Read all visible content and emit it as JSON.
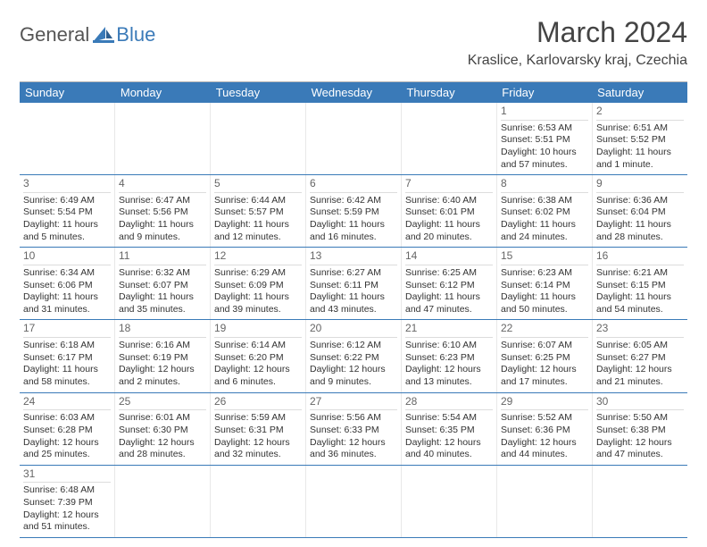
{
  "logo": {
    "text1": "General",
    "text2": "Blue"
  },
  "title": "March 2024",
  "location": "Kraslice, Karlovarsky kraj, Czechia",
  "colors": {
    "header_bg": "#3a7ab8",
    "header_fg": "#ffffff",
    "row_divider": "#3a7ab8",
    "cell_divider": "#e8e8e8",
    "text": "#333333",
    "muted": "#666666",
    "background": "#ffffff"
  },
  "day_headers": [
    "Sunday",
    "Monday",
    "Tuesday",
    "Wednesday",
    "Thursday",
    "Friday",
    "Saturday"
  ],
  "weeks": [
    [
      {
        "n": "",
        "sr": "",
        "ss": "",
        "dl": ""
      },
      {
        "n": "",
        "sr": "",
        "ss": "",
        "dl": ""
      },
      {
        "n": "",
        "sr": "",
        "ss": "",
        "dl": ""
      },
      {
        "n": "",
        "sr": "",
        "ss": "",
        "dl": ""
      },
      {
        "n": "",
        "sr": "",
        "ss": "",
        "dl": ""
      },
      {
        "n": "1",
        "sr": "Sunrise: 6:53 AM",
        "ss": "Sunset: 5:51 PM",
        "dl": "Daylight: 10 hours and 57 minutes."
      },
      {
        "n": "2",
        "sr": "Sunrise: 6:51 AM",
        "ss": "Sunset: 5:52 PM",
        "dl": "Daylight: 11 hours and 1 minute."
      }
    ],
    [
      {
        "n": "3",
        "sr": "Sunrise: 6:49 AM",
        "ss": "Sunset: 5:54 PM",
        "dl": "Daylight: 11 hours and 5 minutes."
      },
      {
        "n": "4",
        "sr": "Sunrise: 6:47 AM",
        "ss": "Sunset: 5:56 PM",
        "dl": "Daylight: 11 hours and 9 minutes."
      },
      {
        "n": "5",
        "sr": "Sunrise: 6:44 AM",
        "ss": "Sunset: 5:57 PM",
        "dl": "Daylight: 11 hours and 12 minutes."
      },
      {
        "n": "6",
        "sr": "Sunrise: 6:42 AM",
        "ss": "Sunset: 5:59 PM",
        "dl": "Daylight: 11 hours and 16 minutes."
      },
      {
        "n": "7",
        "sr": "Sunrise: 6:40 AM",
        "ss": "Sunset: 6:01 PM",
        "dl": "Daylight: 11 hours and 20 minutes."
      },
      {
        "n": "8",
        "sr": "Sunrise: 6:38 AM",
        "ss": "Sunset: 6:02 PM",
        "dl": "Daylight: 11 hours and 24 minutes."
      },
      {
        "n": "9",
        "sr": "Sunrise: 6:36 AM",
        "ss": "Sunset: 6:04 PM",
        "dl": "Daylight: 11 hours and 28 minutes."
      }
    ],
    [
      {
        "n": "10",
        "sr": "Sunrise: 6:34 AM",
        "ss": "Sunset: 6:06 PM",
        "dl": "Daylight: 11 hours and 31 minutes."
      },
      {
        "n": "11",
        "sr": "Sunrise: 6:32 AM",
        "ss": "Sunset: 6:07 PM",
        "dl": "Daylight: 11 hours and 35 minutes."
      },
      {
        "n": "12",
        "sr": "Sunrise: 6:29 AM",
        "ss": "Sunset: 6:09 PM",
        "dl": "Daylight: 11 hours and 39 minutes."
      },
      {
        "n": "13",
        "sr": "Sunrise: 6:27 AM",
        "ss": "Sunset: 6:11 PM",
        "dl": "Daylight: 11 hours and 43 minutes."
      },
      {
        "n": "14",
        "sr": "Sunrise: 6:25 AM",
        "ss": "Sunset: 6:12 PM",
        "dl": "Daylight: 11 hours and 47 minutes."
      },
      {
        "n": "15",
        "sr": "Sunrise: 6:23 AM",
        "ss": "Sunset: 6:14 PM",
        "dl": "Daylight: 11 hours and 50 minutes."
      },
      {
        "n": "16",
        "sr": "Sunrise: 6:21 AM",
        "ss": "Sunset: 6:15 PM",
        "dl": "Daylight: 11 hours and 54 minutes."
      }
    ],
    [
      {
        "n": "17",
        "sr": "Sunrise: 6:18 AM",
        "ss": "Sunset: 6:17 PM",
        "dl": "Daylight: 11 hours and 58 minutes."
      },
      {
        "n": "18",
        "sr": "Sunrise: 6:16 AM",
        "ss": "Sunset: 6:19 PM",
        "dl": "Daylight: 12 hours and 2 minutes."
      },
      {
        "n": "19",
        "sr": "Sunrise: 6:14 AM",
        "ss": "Sunset: 6:20 PM",
        "dl": "Daylight: 12 hours and 6 minutes."
      },
      {
        "n": "20",
        "sr": "Sunrise: 6:12 AM",
        "ss": "Sunset: 6:22 PM",
        "dl": "Daylight: 12 hours and 9 minutes."
      },
      {
        "n": "21",
        "sr": "Sunrise: 6:10 AM",
        "ss": "Sunset: 6:23 PM",
        "dl": "Daylight: 12 hours and 13 minutes."
      },
      {
        "n": "22",
        "sr": "Sunrise: 6:07 AM",
        "ss": "Sunset: 6:25 PM",
        "dl": "Daylight: 12 hours and 17 minutes."
      },
      {
        "n": "23",
        "sr": "Sunrise: 6:05 AM",
        "ss": "Sunset: 6:27 PM",
        "dl": "Daylight: 12 hours and 21 minutes."
      }
    ],
    [
      {
        "n": "24",
        "sr": "Sunrise: 6:03 AM",
        "ss": "Sunset: 6:28 PM",
        "dl": "Daylight: 12 hours and 25 minutes."
      },
      {
        "n": "25",
        "sr": "Sunrise: 6:01 AM",
        "ss": "Sunset: 6:30 PM",
        "dl": "Daylight: 12 hours and 28 minutes."
      },
      {
        "n": "26",
        "sr": "Sunrise: 5:59 AM",
        "ss": "Sunset: 6:31 PM",
        "dl": "Daylight: 12 hours and 32 minutes."
      },
      {
        "n": "27",
        "sr": "Sunrise: 5:56 AM",
        "ss": "Sunset: 6:33 PM",
        "dl": "Daylight: 12 hours and 36 minutes."
      },
      {
        "n": "28",
        "sr": "Sunrise: 5:54 AM",
        "ss": "Sunset: 6:35 PM",
        "dl": "Daylight: 12 hours and 40 minutes."
      },
      {
        "n": "29",
        "sr": "Sunrise: 5:52 AM",
        "ss": "Sunset: 6:36 PM",
        "dl": "Daylight: 12 hours and 44 minutes."
      },
      {
        "n": "30",
        "sr": "Sunrise: 5:50 AM",
        "ss": "Sunset: 6:38 PM",
        "dl": "Daylight: 12 hours and 47 minutes."
      }
    ],
    [
      {
        "n": "31",
        "sr": "Sunrise: 6:48 AM",
        "ss": "Sunset: 7:39 PM",
        "dl": "Daylight: 12 hours and 51 minutes."
      },
      {
        "n": "",
        "sr": "",
        "ss": "",
        "dl": ""
      },
      {
        "n": "",
        "sr": "",
        "ss": "",
        "dl": ""
      },
      {
        "n": "",
        "sr": "",
        "ss": "",
        "dl": ""
      },
      {
        "n": "",
        "sr": "",
        "ss": "",
        "dl": ""
      },
      {
        "n": "",
        "sr": "",
        "ss": "",
        "dl": ""
      },
      {
        "n": "",
        "sr": "",
        "ss": "",
        "dl": ""
      }
    ]
  ]
}
